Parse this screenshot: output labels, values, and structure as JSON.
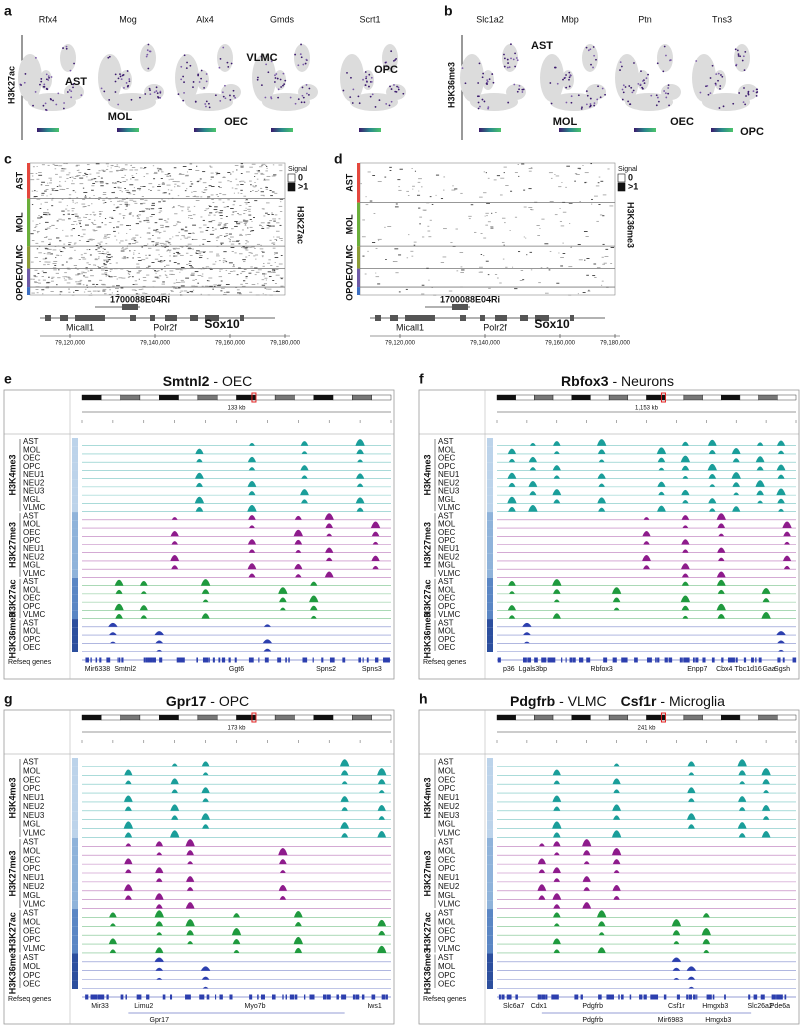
{
  "panel_a": {
    "letter": "a",
    "mark": "H3K27ac",
    "genes": [
      "Rfx4",
      "Mog",
      "Alx4",
      "Gmds",
      "Scrt1"
    ],
    "cell_types": [
      "AST",
      "MOL",
      "OEC",
      "VLMC",
      "OPC"
    ]
  },
  "panel_b": {
    "letter": "b",
    "mark": "H3K36me3",
    "genes": [
      "Slc1a2",
      "Mbp",
      "Ptn",
      "Tns3"
    ],
    "cell_types": [
      "AST",
      "MOL",
      "OEC",
      "OPC"
    ]
  },
  "panel_c": {
    "letter": "c",
    "mark": "H3K27ac",
    "groups": [
      "AST",
      "MOL",
      "VLMC",
      "OEC",
      "OPC"
    ],
    "legend": {
      "title": "Signal",
      "labels": [
        "0",
        ">1"
      ]
    },
    "genes": [
      "1700088E04Ri",
      "Micall1",
      "Polr2f",
      "Sox10"
    ],
    "xticks": [
      "79,120,000",
      "79,140,000",
      "79,160,000",
      "79,180,000"
    ]
  },
  "panel_d": {
    "letter": "d",
    "mark": "H3K36me3",
    "groups": [
      "AST",
      "MOL",
      "VLMC",
      "OEC",
      "OPC"
    ],
    "legend": {
      "title": "Signal",
      "labels": [
        "0",
        ">1"
      ]
    },
    "genes": [
      "1700088E04Ri",
      "Micall1",
      "Polr2f",
      "Sox10"
    ],
    "xticks": [
      "79,120,000",
      "79,140,000",
      "79,160,000",
      "79,180,000"
    ]
  },
  "tracks": [
    {
      "mark": "H3K4me3",
      "color": "#1a9e9a",
      "cells": [
        "AST",
        "MOL",
        "OEC",
        "OPC",
        "NEU1",
        "NEU2",
        "NEU3",
        "MGL",
        "VLMC"
      ]
    },
    {
      "mark": "H3K27me3",
      "color": "#8e1b8c",
      "cells": [
        "AST",
        "MOL",
        "OEC",
        "OPC",
        "NEU1",
        "NEU2",
        "MGL",
        "VLMC"
      ]
    },
    {
      "mark": "H3K27ac",
      "color": "#1f9a3e",
      "cells": [
        "AST",
        "MOL",
        "OEC",
        "OPC",
        "VLMC"
      ]
    },
    {
      "mark": "H3K36me3",
      "color": "#2c3fae",
      "cells": [
        "AST",
        "MOL",
        "OPC",
        "OEC"
      ]
    }
  ],
  "panel_e": {
    "letter": "e",
    "title": [
      {
        "text": "Smtnl2",
        "bold": true
      },
      {
        "text": "- OEC"
      }
    ],
    "scale": "133 kb",
    "refseq_label": "Refseq genes",
    "genes": [
      "Mir6338",
      "Smtnl2",
      "Ggt6",
      "Spns2",
      "Spns3"
    ]
  },
  "panel_f": {
    "letter": "f",
    "title": [
      {
        "text": "Rbfox3",
        "bold": true
      },
      {
        "text": "- Neurons"
      }
    ],
    "scale": "1,153 kb",
    "refseq_label": "Refseq genes",
    "genes": [
      "p36",
      "Lgals3bp",
      "Rbfox3",
      "Enpp7",
      "Cbx4",
      "Tbc1d16",
      "Gaa",
      "Sgsh"
    ]
  },
  "panel_g": {
    "letter": "g",
    "title": [
      {
        "text": "Gpr17",
        "bold": true
      },
      {
        "text": "- OPC"
      }
    ],
    "scale": "173 kb",
    "refseq_label": "Refseq genes",
    "genes": [
      "Mir33",
      "Limu2",
      "Myo7b",
      "Iws1"
    ],
    "genes_row2": [
      "Gpr17"
    ]
  },
  "panel_h": {
    "letter": "h",
    "title": [
      {
        "text": "Pdgfrb",
        "bold": true
      },
      {
        "text": "- VLMC"
      },
      {
        "text": "Csf1r",
        "bold": true
      },
      {
        "text": "- Microglia"
      }
    ],
    "scale": "241 kb",
    "refseq_label": "Refseq genes",
    "genes": [
      "Slc6a7",
      "Cdx1",
      "Pdgfrb",
      "Csf1r",
      "Hmgxb3",
      "Slc26a2",
      "Pde6a"
    ],
    "genes_row2": [
      "Pdgfrb",
      "Mir6983",
      "Hmgxb3"
    ]
  }
}
